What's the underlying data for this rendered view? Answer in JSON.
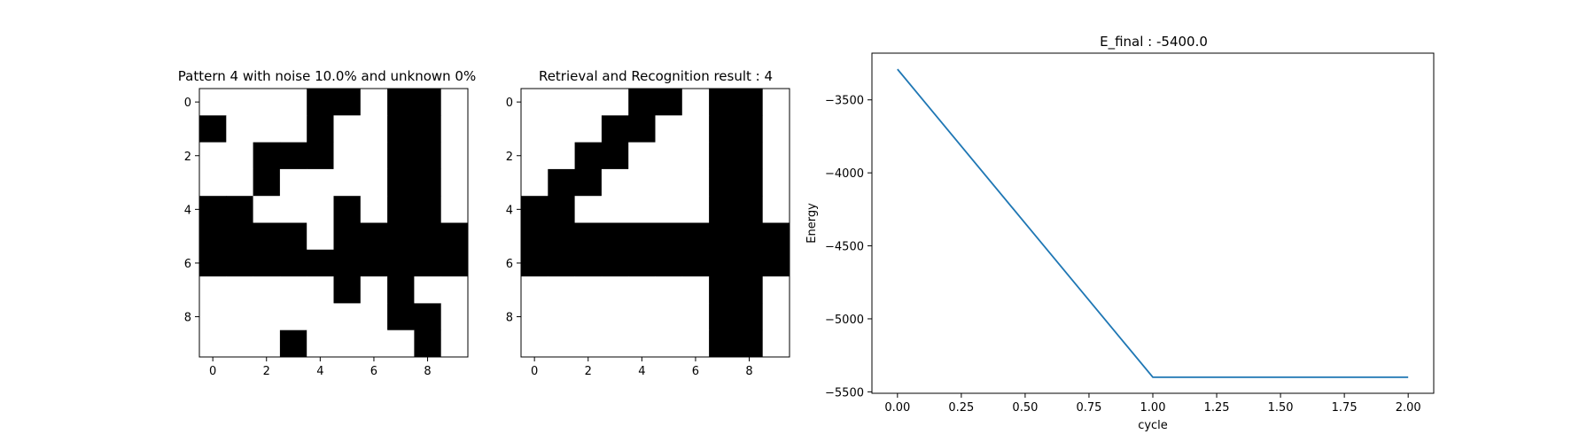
{
  "chart_data": [
    {
      "type": "heatmap",
      "title": "Pattern 4 with noise 10.0% and unknown 0%",
      "colormap": "binary",
      "colors": {
        "on": "#000000",
        "off": "#ffffff"
      },
      "xticks": [
        0,
        2,
        4,
        6,
        8
      ],
      "yticks": [
        0,
        2,
        4,
        6,
        8
      ],
      "grid": [
        [
          0,
          0,
          0,
          0,
          1,
          1,
          0,
          1,
          1,
          0
        ],
        [
          1,
          0,
          0,
          0,
          1,
          0,
          0,
          1,
          1,
          0
        ],
        [
          0,
          0,
          1,
          1,
          1,
          0,
          0,
          1,
          1,
          0
        ],
        [
          0,
          0,
          1,
          0,
          0,
          0,
          0,
          1,
          1,
          0
        ],
        [
          1,
          1,
          0,
          0,
          0,
          1,
          0,
          1,
          1,
          0
        ],
        [
          1,
          1,
          1,
          1,
          0,
          1,
          1,
          1,
          1,
          1
        ],
        [
          1,
          1,
          1,
          1,
          1,
          1,
          1,
          1,
          1,
          1
        ],
        [
          0,
          0,
          0,
          0,
          0,
          1,
          0,
          1,
          0,
          0
        ],
        [
          0,
          0,
          0,
          0,
          0,
          0,
          0,
          1,
          1,
          0
        ],
        [
          0,
          0,
          0,
          1,
          0,
          0,
          0,
          0,
          1,
          0
        ]
      ]
    },
    {
      "type": "heatmap",
      "title": "Retrieval and Recognition result : 4",
      "colormap": "binary",
      "colors": {
        "on": "#000000",
        "off": "#ffffff"
      },
      "xticks": [
        0,
        2,
        4,
        6,
        8
      ],
      "yticks": [
        0,
        2,
        4,
        6,
        8
      ],
      "grid": [
        [
          0,
          0,
          0,
          0,
          1,
          1,
          0,
          1,
          1,
          0
        ],
        [
          0,
          0,
          0,
          1,
          1,
          0,
          0,
          1,
          1,
          0
        ],
        [
          0,
          0,
          1,
          1,
          0,
          0,
          0,
          1,
          1,
          0
        ],
        [
          0,
          1,
          1,
          0,
          0,
          0,
          0,
          1,
          1,
          0
        ],
        [
          1,
          1,
          0,
          0,
          0,
          0,
          0,
          1,
          1,
          0
        ],
        [
          1,
          1,
          1,
          1,
          1,
          1,
          1,
          1,
          1,
          1
        ],
        [
          1,
          1,
          1,
          1,
          1,
          1,
          1,
          1,
          1,
          1
        ],
        [
          0,
          0,
          0,
          0,
          0,
          0,
          0,
          1,
          1,
          0
        ],
        [
          0,
          0,
          0,
          0,
          0,
          0,
          0,
          1,
          1,
          0
        ],
        [
          0,
          0,
          0,
          0,
          0,
          0,
          0,
          1,
          1,
          0
        ]
      ]
    },
    {
      "type": "line",
      "title": "E_final : -5400.0",
      "xlabel": "cycle",
      "ylabel": "Energy",
      "line_color": "#1f77b4",
      "xlim": [
        -0.1,
        2.1
      ],
      "ylim": [
        -5510,
        -3180
      ],
      "xticks": [
        0.0,
        0.25,
        0.5,
        0.75,
        1.0,
        1.25,
        1.5,
        1.75,
        2.0
      ],
      "xtick_labels": [
        "0.00",
        "0.25",
        "0.50",
        "0.75",
        "1.00",
        "1.25",
        "1.50",
        "1.75",
        "2.00"
      ],
      "yticks": [
        -5500,
        -5000,
        -4500,
        -4000,
        -3500
      ],
      "ytick_labels": [
        "−5500",
        "−5000",
        "−4500",
        "−4000",
        "−3500"
      ],
      "series": [
        {
          "x": [
            0,
            1,
            2
          ],
          "y": [
            -3290,
            -5400,
            -5400
          ]
        }
      ]
    }
  ]
}
